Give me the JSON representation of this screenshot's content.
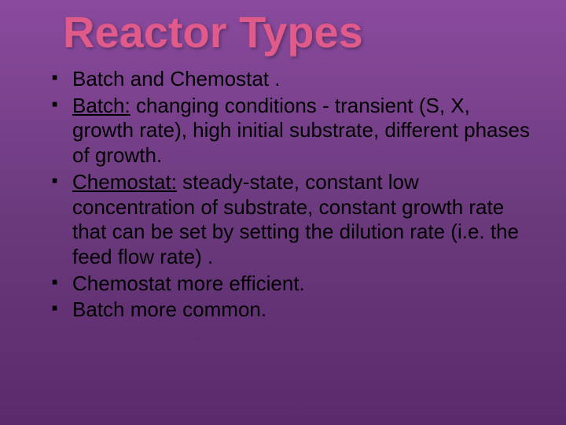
{
  "slide": {
    "title": "Reactor Types",
    "title_color": "#e05a8a",
    "background_gradient": [
      "#8a4a9e",
      "#6b3a7d",
      "#5a2a6d"
    ],
    "title_fontsize": 56,
    "body_fontsize": 26,
    "body_color": "#000000",
    "bullets": [
      {
        "prefix": "",
        "prefix_underline": false,
        "text": "Batch and Chemostat ."
      },
      {
        "prefix": "Batch:",
        "prefix_underline": true,
        "text": "  changing conditions - transient (S, X, growth rate), high initial substrate, different phases of growth."
      },
      {
        "prefix": "Chemostat:",
        "prefix_underline": true,
        "text": "  steady-state, constant low concentration of substrate, constant growth rate that can be set by setting the dilution rate (i.e. the feed flow rate)  ."
      },
      {
        "prefix": "",
        "prefix_underline": false,
        "text": "Chemostat more efficient."
      },
      {
        "prefix": "",
        "prefix_underline": false,
        "text": "Batch more common."
      }
    ]
  }
}
